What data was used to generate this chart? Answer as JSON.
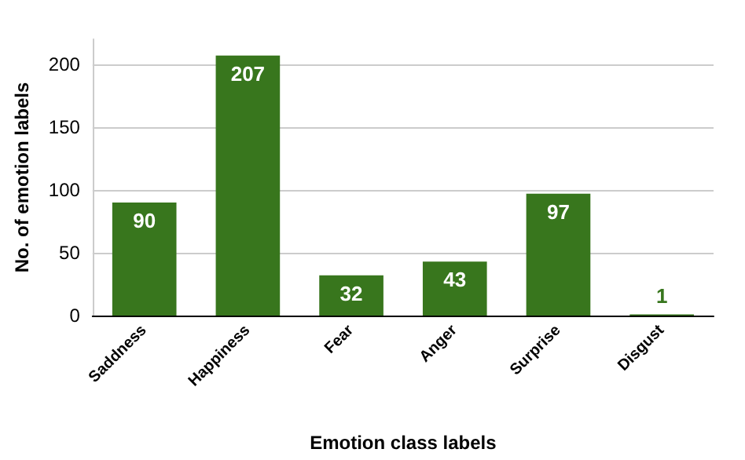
{
  "chart_data": {
    "type": "bar",
    "xlabel": "Emotion class labels",
    "ylabel": "No. of emotion labels",
    "categories": [
      "Saddness",
      "Happiness",
      "Fear",
      "Anger",
      "Surprise",
      "Disgust"
    ],
    "values": [
      90,
      207,
      32,
      43,
      97,
      1
    ],
    "color": "#38761d",
    "ylim": [
      0,
      220
    ],
    "yticks": [
      0,
      50,
      100,
      150,
      200
    ],
    "grid": "y",
    "data_labels": true
  }
}
